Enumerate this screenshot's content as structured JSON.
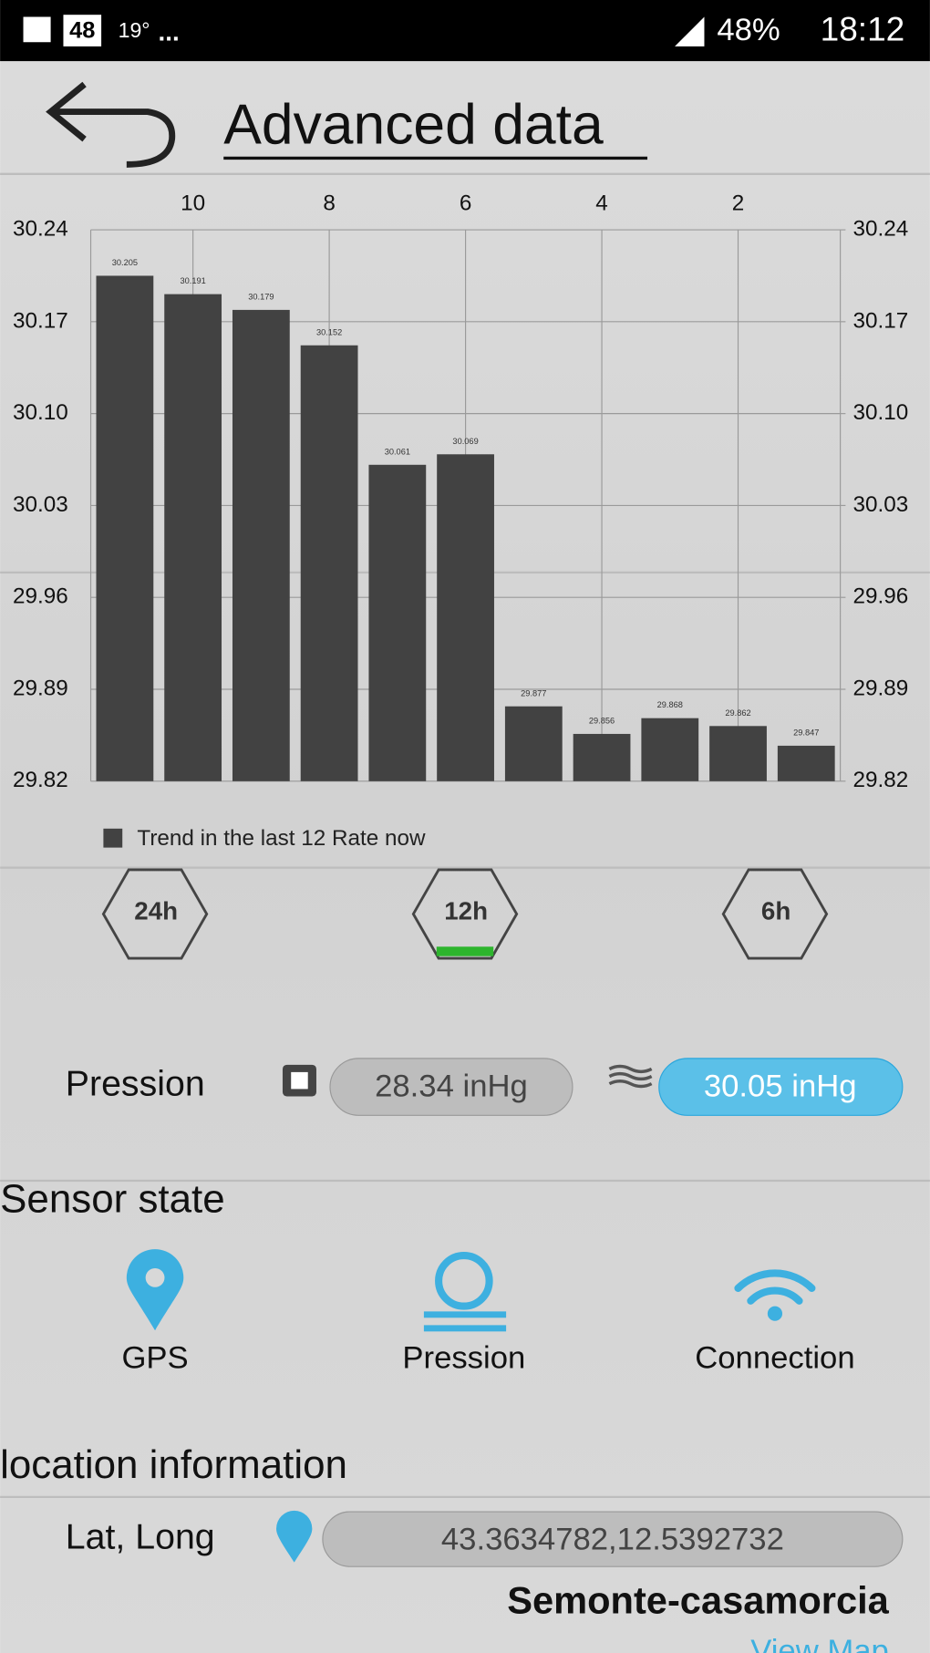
{
  "status_bar": {
    "notification_count": "48",
    "temperature": "19°",
    "more": "...",
    "battery": "48%",
    "time": "18:12"
  },
  "header": {
    "title": "Advanced data"
  },
  "chart_data": {
    "type": "bar",
    "x": [
      11,
      10,
      9,
      8,
      7,
      6,
      5,
      4,
      3,
      2,
      1
    ],
    "xlim": [
      11.5,
      0.5
    ],
    "xticks": [
      10,
      8,
      6,
      4,
      2
    ],
    "ylim": [
      29.82,
      30.24
    ],
    "yticks": [
      30.24,
      30.17,
      {
        "value": 30.1,
        "label": "30.10"
      },
      30.03,
      29.96,
      29.89,
      29.82
    ],
    "y2lim": [
      29.82,
      30.24
    ],
    "y2ticks": [
      30.24,
      30.17,
      {
        "value": 30.1,
        "label": "30.10"
      },
      30.03,
      29.96,
      29.89,
      29.82
    ],
    "grid": true,
    "series": [
      {
        "name": "Trend in the last 12 Rate now",
        "color": "#424242",
        "values": [
          30.205,
          30.191,
          30.179,
          30.152,
          30.061,
          30.069,
          29.877,
          29.856,
          29.868,
          29.862,
          29.847
        ]
      }
    ]
  },
  "range_buttons": [
    "24h",
    "12h",
    "6h"
  ],
  "pressure": {
    "label": "Pression",
    "sensor_value": "28.34 inHg",
    "sea_level_value": "30.05 inHg"
  },
  "sensor_state": {
    "title": "Sensor state",
    "items": [
      "GPS",
      "Pression",
      "Connection"
    ]
  },
  "location": {
    "title": "location information",
    "label": "Lat, Long",
    "coordinates": "43.3634782,12.5392732",
    "place": "Semonte-casamorcia",
    "link": "View Map"
  }
}
